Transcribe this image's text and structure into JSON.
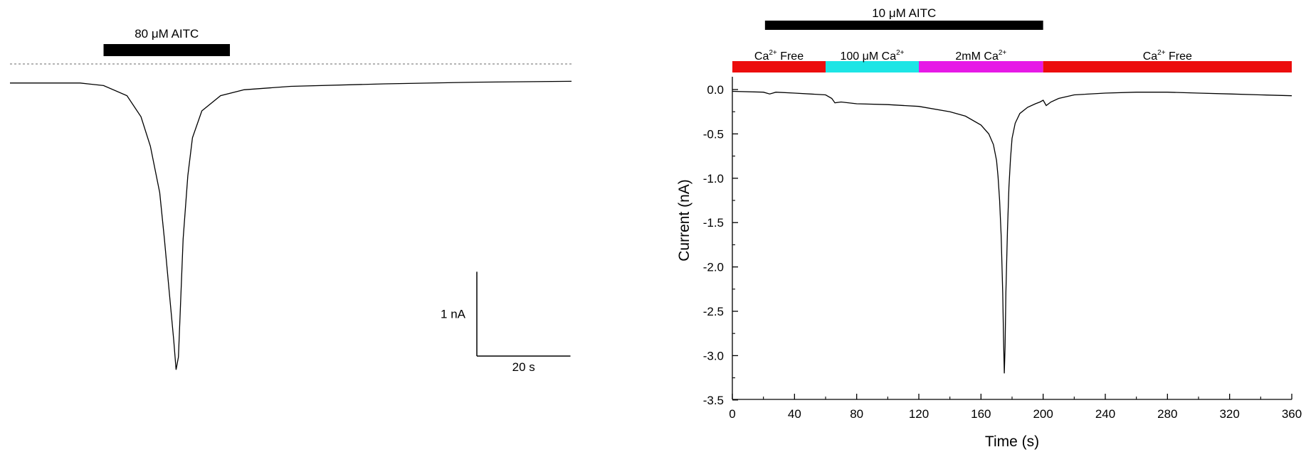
{
  "chart_data": [
    {
      "type": "line",
      "title": "",
      "stimulus": {
        "label": "80 μM AITC",
        "start_s": 20,
        "end_s": 47
      },
      "scale_bar": {
        "current_label": "1 nA",
        "current_nA": 1,
        "time_label": "20 s",
        "time_s": 20
      },
      "baseline_dotted": true,
      "x_range_s": [
        0,
        120
      ],
      "y_range_nA": [
        -3.6,
        0.1
      ],
      "series": [
        {
          "x": [
            0,
            15,
            20,
            25,
            28,
            30,
            32,
            33,
            34,
            35,
            35.5,
            36,
            36.5,
            37,
            38,
            39,
            41,
            45,
            50,
            60,
            80,
            100,
            120
          ],
          "y": [
            -0.05,
            -0.05,
            -0.08,
            -0.2,
            -0.45,
            -0.8,
            -1.35,
            -1.9,
            -2.5,
            -3.1,
            -3.45,
            -3.3,
            -2.6,
            -1.9,
            -1.15,
            -0.7,
            -0.38,
            -0.2,
            -0.13,
            -0.09,
            -0.06,
            -0.04,
            -0.03
          ]
        }
      ],
      "colors": {
        "trace": "#000000",
        "baseline": "#888888"
      }
    },
    {
      "type": "line",
      "title": "",
      "xlabel": "Time (s)",
      "ylabel": "Current (nA)",
      "xlim": [
        0,
        360
      ],
      "ylim": [
        -3.5,
        0.25
      ],
      "x_ticks": [
        "0",
        "40",
        "80",
        "120",
        "160",
        "200",
        "240",
        "280",
        "320",
        "360"
      ],
      "y_ticks": [
        "0.0",
        "-0.5",
        "-1.0",
        "-1.5",
        "-2.0",
        "-2.5",
        "-3.0",
        "-3.5"
      ],
      "stimulus": {
        "label": "10 μM AITC",
        "start_s": 21,
        "end_s": 200
      },
      "conditions": [
        {
          "label": "Ca",
          "sup": "2+",
          "suffix": " Free",
          "start_s": 0,
          "end_s": 60,
          "color": "#ec0d0d"
        },
        {
          "label": "100 μM Ca",
          "sup": "2+",
          "suffix": "",
          "start_s": 60,
          "end_s": 120,
          "color": "#1de5e5"
        },
        {
          "label": "2mM  Ca",
          "sup": "2+",
          "suffix": "",
          "start_s": 120,
          "end_s": 200,
          "color": "#e619e6"
        },
        {
          "label": "Ca",
          "sup": "2+",
          "suffix": " Free",
          "start_s": 200,
          "end_s": 360,
          "color": "#ec0d0d"
        }
      ],
      "series": [
        {
          "x": [
            0,
            20,
            24,
            26,
            28,
            40,
            60,
            64,
            66,
            70,
            80,
            100,
            120,
            140,
            150,
            160,
            165,
            168,
            170,
            171,
            172,
            173,
            174,
            174.5,
            175,
            175.5,
            176,
            177,
            178,
            179,
            180,
            182,
            185,
            190,
            195,
            198,
            200,
            202,
            205,
            210,
            220,
            240,
            260,
            280,
            300,
            320,
            340,
            360
          ],
          "y": [
            -0.02,
            -0.03,
            -0.05,
            -0.04,
            -0.03,
            -0.04,
            -0.06,
            -0.1,
            -0.15,
            -0.14,
            -0.16,
            -0.17,
            -0.19,
            -0.25,
            -0.3,
            -0.4,
            -0.5,
            -0.62,
            -0.8,
            -0.98,
            -1.25,
            -1.65,
            -2.3,
            -2.8,
            -3.2,
            -2.9,
            -2.3,
            -1.6,
            -1.1,
            -0.78,
            -0.55,
            -0.38,
            -0.27,
            -0.2,
            -0.16,
            -0.14,
            -0.12,
            -0.18,
            -0.14,
            -0.1,
            -0.06,
            -0.04,
            -0.03,
            -0.03,
            -0.04,
            -0.05,
            -0.06,
            -0.07
          ]
        }
      ],
      "colors": {
        "trace": "#000000"
      }
    }
  ]
}
